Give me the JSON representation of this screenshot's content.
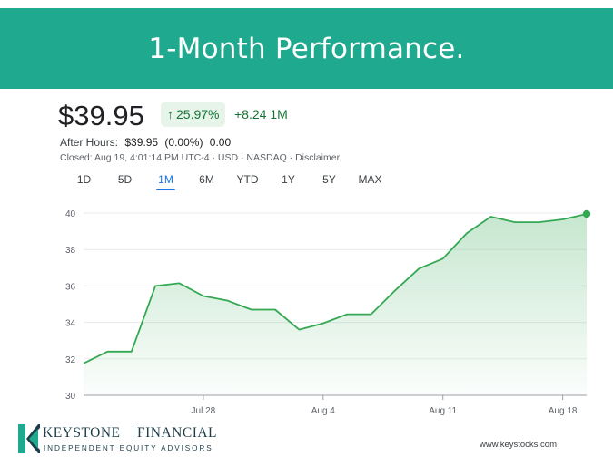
{
  "banner": {
    "title": "1-Month Performance."
  },
  "quote": {
    "price": "$39.95",
    "percent_change": "25.97%",
    "change_arrow_icon": "arrow-up-icon",
    "abs_change": "+8.24 1M",
    "after_hours_label": "After Hours:",
    "after_hours_price": "$39.95",
    "after_hours_pct": "(0.00%)",
    "after_hours_change": "0.00",
    "closed_line": "Closed: Aug 19, 4:01:14 PM UTC-4 · USD · NASDAQ · Disclaimer"
  },
  "ranges": {
    "items": [
      "1D",
      "5D",
      "1M",
      "6M",
      "YTD",
      "1Y",
      "5Y",
      "MAX"
    ],
    "selected": "1M"
  },
  "colors": {
    "banner": "#1fa98f",
    "line": "#34a853",
    "positive_text": "#137333",
    "active_tab": "#1a73e8"
  },
  "chart_data": {
    "type": "area",
    "x_ticks": [
      "Jul 28",
      "Aug 4",
      "Aug 11",
      "Aug 18"
    ],
    "x_tick_index": [
      5,
      10,
      15,
      20
    ],
    "y_ticks": [
      30,
      32,
      34,
      36,
      38,
      40
    ],
    "ylim": [
      30,
      40
    ],
    "grid": true,
    "values": [
      31.75,
      32.4,
      32.4,
      36.0,
      36.15,
      35.45,
      35.2,
      34.7,
      34.7,
      33.6,
      33.95,
      34.45,
      34.45,
      35.75,
      36.95,
      37.5,
      38.9,
      39.8,
      39.5,
      39.5,
      39.65,
      39.95
    ],
    "last_point_marker": true
  },
  "footer": {
    "brand_primary": "KEYSTONE",
    "brand_secondary": "FINANCIAL",
    "tagline": "INDEPENDENT EQUITY ADVISORS",
    "website": "www.keystocks.com",
    "logo_icon": "keystone-logo-icon"
  }
}
